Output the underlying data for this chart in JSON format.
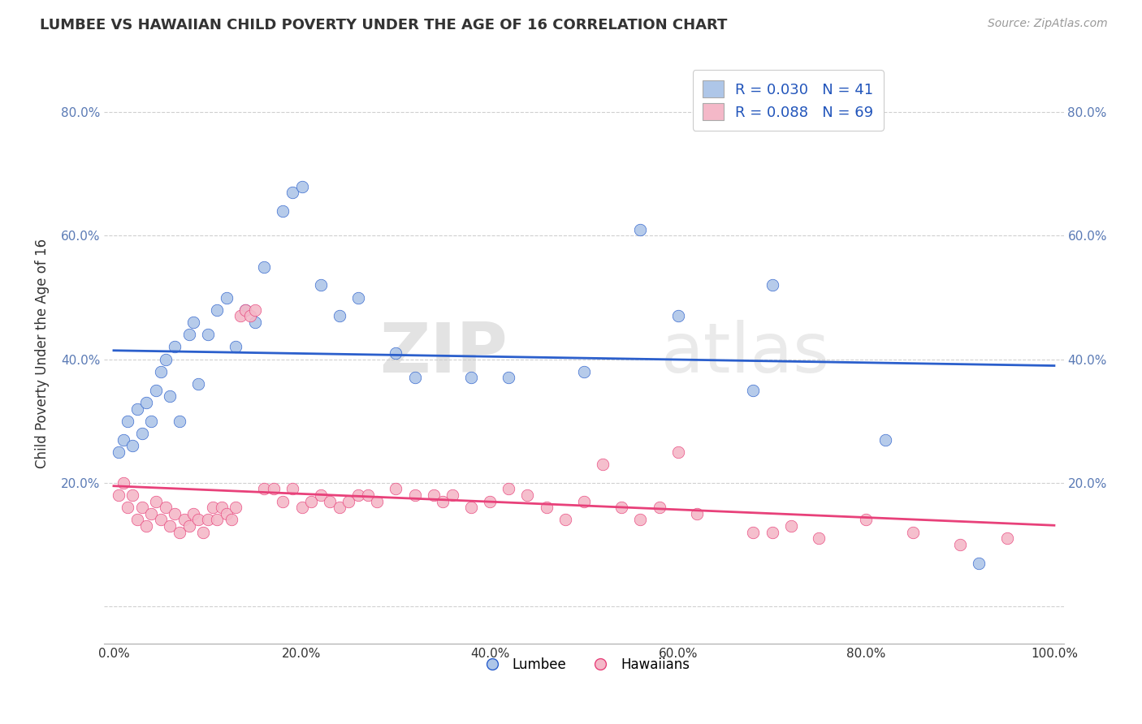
{
  "title": "LUMBEE VS HAWAIIAN CHILD POVERTY UNDER THE AGE OF 16 CORRELATION CHART",
  "source": "Source: ZipAtlas.com",
  "ylabel": "Child Poverty Under the Age of 16",
  "xlim": [
    -0.01,
    1.01
  ],
  "ylim": [
    -0.06,
    0.88
  ],
  "xticks": [
    0.0,
    0.2,
    0.4,
    0.6,
    0.8,
    1.0
  ],
  "xtick_labels": [
    "0.0%",
    "20.0%",
    "40.0%",
    "60.0%",
    "80.0%",
    "100.0%"
  ],
  "yticks": [
    0.0,
    0.2,
    0.4,
    0.6,
    0.8
  ],
  "ytick_labels": [
    "",
    "20.0%",
    "40.0%",
    "60.0%",
    "80.0%"
  ],
  "lumbee_color": "#aec6e8",
  "hawaiian_color": "#f4b8c8",
  "lumbee_line_color": "#2b5fcc",
  "hawaiian_line_color": "#e8417a",
  "lumbee_R": 0.03,
  "lumbee_N": 41,
  "hawaiian_R": 0.088,
  "hawaiian_N": 69,
  "watermark": "ZIPatlas",
  "lumbee_x": [
    0.005,
    0.01,
    0.015,
    0.02,
    0.025,
    0.03,
    0.035,
    0.04,
    0.045,
    0.05,
    0.055,
    0.06,
    0.065,
    0.07,
    0.08,
    0.085,
    0.09,
    0.1,
    0.11,
    0.12,
    0.13,
    0.14,
    0.15,
    0.16,
    0.18,
    0.19,
    0.2,
    0.22,
    0.24,
    0.26,
    0.3,
    0.32,
    0.38,
    0.42,
    0.5,
    0.56,
    0.6,
    0.68,
    0.7,
    0.82,
    0.92
  ],
  "lumbee_y": [
    0.25,
    0.27,
    0.3,
    0.26,
    0.32,
    0.28,
    0.33,
    0.3,
    0.35,
    0.38,
    0.4,
    0.34,
    0.42,
    0.3,
    0.44,
    0.46,
    0.36,
    0.44,
    0.48,
    0.5,
    0.42,
    0.48,
    0.46,
    0.55,
    0.64,
    0.67,
    0.68,
    0.52,
    0.47,
    0.5,
    0.41,
    0.37,
    0.37,
    0.37,
    0.38,
    0.61,
    0.47,
    0.35,
    0.52,
    0.27,
    0.07
  ],
  "hawaiian_x": [
    0.005,
    0.01,
    0.015,
    0.02,
    0.025,
    0.03,
    0.035,
    0.04,
    0.045,
    0.05,
    0.055,
    0.06,
    0.065,
    0.07,
    0.075,
    0.08,
    0.085,
    0.09,
    0.095,
    0.1,
    0.105,
    0.11,
    0.115,
    0.12,
    0.125,
    0.13,
    0.135,
    0.14,
    0.145,
    0.15,
    0.16,
    0.17,
    0.18,
    0.19,
    0.2,
    0.21,
    0.22,
    0.23,
    0.24,
    0.25,
    0.26,
    0.27,
    0.28,
    0.3,
    0.32,
    0.34,
    0.35,
    0.36,
    0.38,
    0.4,
    0.42,
    0.44,
    0.46,
    0.48,
    0.5,
    0.52,
    0.54,
    0.56,
    0.58,
    0.6,
    0.62,
    0.68,
    0.7,
    0.72,
    0.75,
    0.8,
    0.85,
    0.9,
    0.95
  ],
  "hawaiian_y": [
    0.18,
    0.2,
    0.16,
    0.18,
    0.14,
    0.16,
    0.13,
    0.15,
    0.17,
    0.14,
    0.16,
    0.13,
    0.15,
    0.12,
    0.14,
    0.13,
    0.15,
    0.14,
    0.12,
    0.14,
    0.16,
    0.14,
    0.16,
    0.15,
    0.14,
    0.16,
    0.47,
    0.48,
    0.47,
    0.48,
    0.19,
    0.19,
    0.17,
    0.19,
    0.16,
    0.17,
    0.18,
    0.17,
    0.16,
    0.17,
    0.18,
    0.18,
    0.17,
    0.19,
    0.18,
    0.18,
    0.17,
    0.18,
    0.16,
    0.17,
    0.19,
    0.18,
    0.16,
    0.14,
    0.17,
    0.23,
    0.16,
    0.14,
    0.16,
    0.25,
    0.15,
    0.12,
    0.12,
    0.13,
    0.11,
    0.14,
    0.12,
    0.1,
    0.11
  ]
}
